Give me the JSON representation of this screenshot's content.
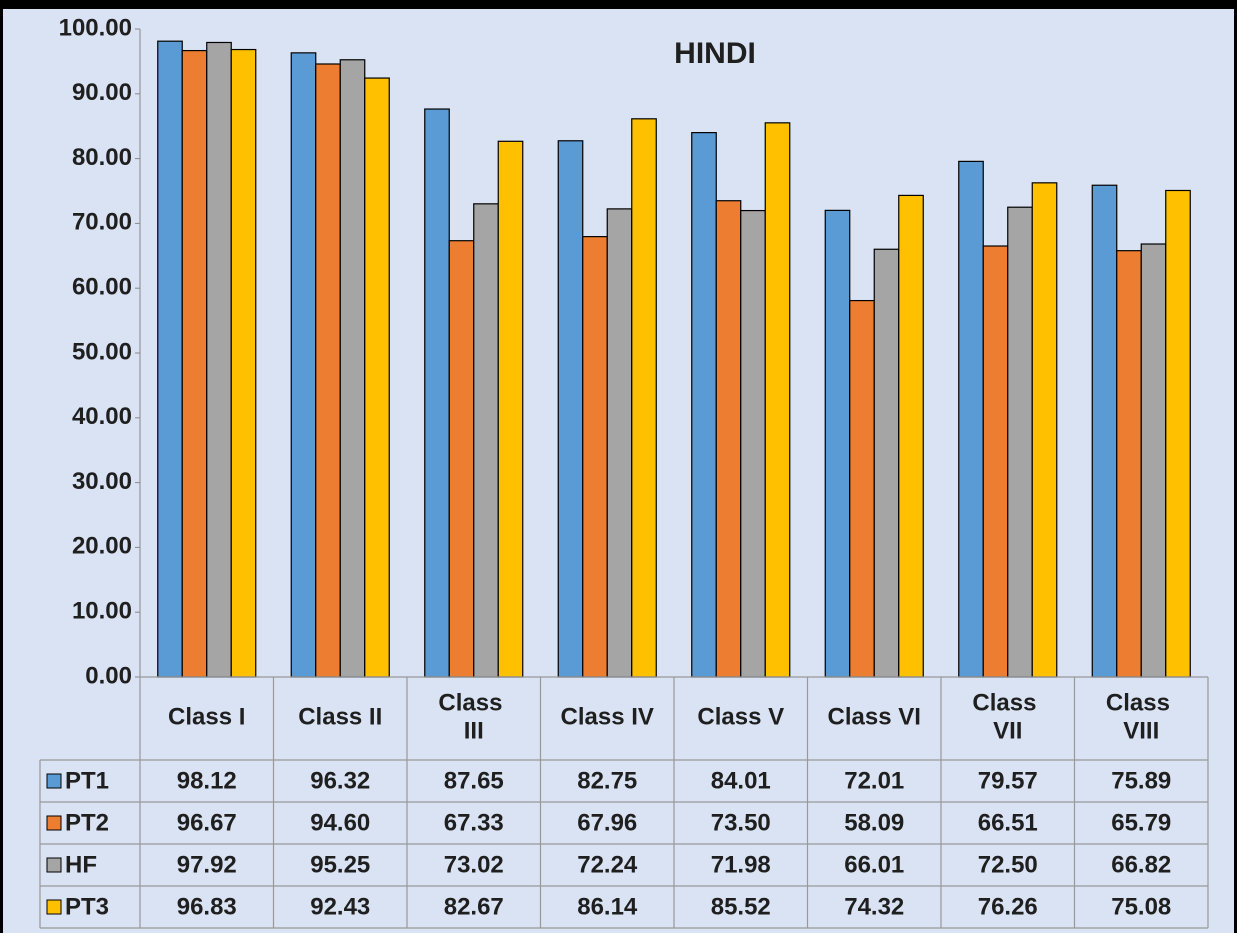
{
  "chart_data": {
    "type": "bar",
    "title": "HINDI",
    "categories": [
      "Class I",
      "Class II",
      "Class III",
      "Class IV",
      "Class V",
      "Class VI",
      "Class VII",
      "Class VIII"
    ],
    "series": [
      {
        "name": "PT1",
        "color": "#5b9bd5",
        "values": [
          98.12,
          96.32,
          87.65,
          82.75,
          84.01,
          72.01,
          79.57,
          75.89
        ],
        "value_labels": [
          "98.12",
          "96.32",
          "87.65",
          "82.75",
          "84.01",
          "72.01",
          "79.57",
          "75.89"
        ]
      },
      {
        "name": "PT2",
        "color": "#ed7d31",
        "values": [
          96.67,
          94.6,
          67.33,
          67.96,
          73.5,
          58.09,
          66.51,
          65.79
        ],
        "value_labels": [
          "96.67",
          "94.60",
          "67.33",
          "67.96",
          "73.50",
          "58.09",
          "66.51",
          "65.79"
        ]
      },
      {
        "name": "HF",
        "color": "#a5a5a5",
        "values": [
          97.92,
          95.25,
          73.02,
          72.24,
          71.98,
          66.01,
          72.5,
          66.82
        ],
        "value_labels": [
          "97.92",
          "95.25",
          "73.02",
          "72.24",
          "71.98",
          "66.01",
          "72.50",
          "66.82"
        ]
      },
      {
        "name": "PT3",
        "color": "#ffc000",
        "values": [
          96.83,
          92.43,
          82.67,
          86.14,
          85.52,
          74.32,
          76.26,
          75.08
        ],
        "value_labels": [
          "96.83",
          "92.43",
          "82.67",
          "86.14",
          "85.52",
          "74.32",
          "76.26",
          "75.08"
        ]
      }
    ],
    "ylim": [
      0,
      100
    ],
    "yticks": [
      {
        "value": 0,
        "label": "0.00"
      },
      {
        "value": 10,
        "label": "10.00"
      },
      {
        "value": 20,
        "label": "20.00"
      },
      {
        "value": 30,
        "label": "30.00"
      },
      {
        "value": 40,
        "label": "40.00"
      },
      {
        "value": 50,
        "label": "50.00"
      },
      {
        "value": 60,
        "label": "60.00"
      },
      {
        "value": 70,
        "label": "70.00"
      },
      {
        "value": 80,
        "label": "80.00"
      },
      {
        "value": 90,
        "label": "90.00"
      },
      {
        "value": 100,
        "label": "100.00"
      }
    ],
    "grid": false
  }
}
